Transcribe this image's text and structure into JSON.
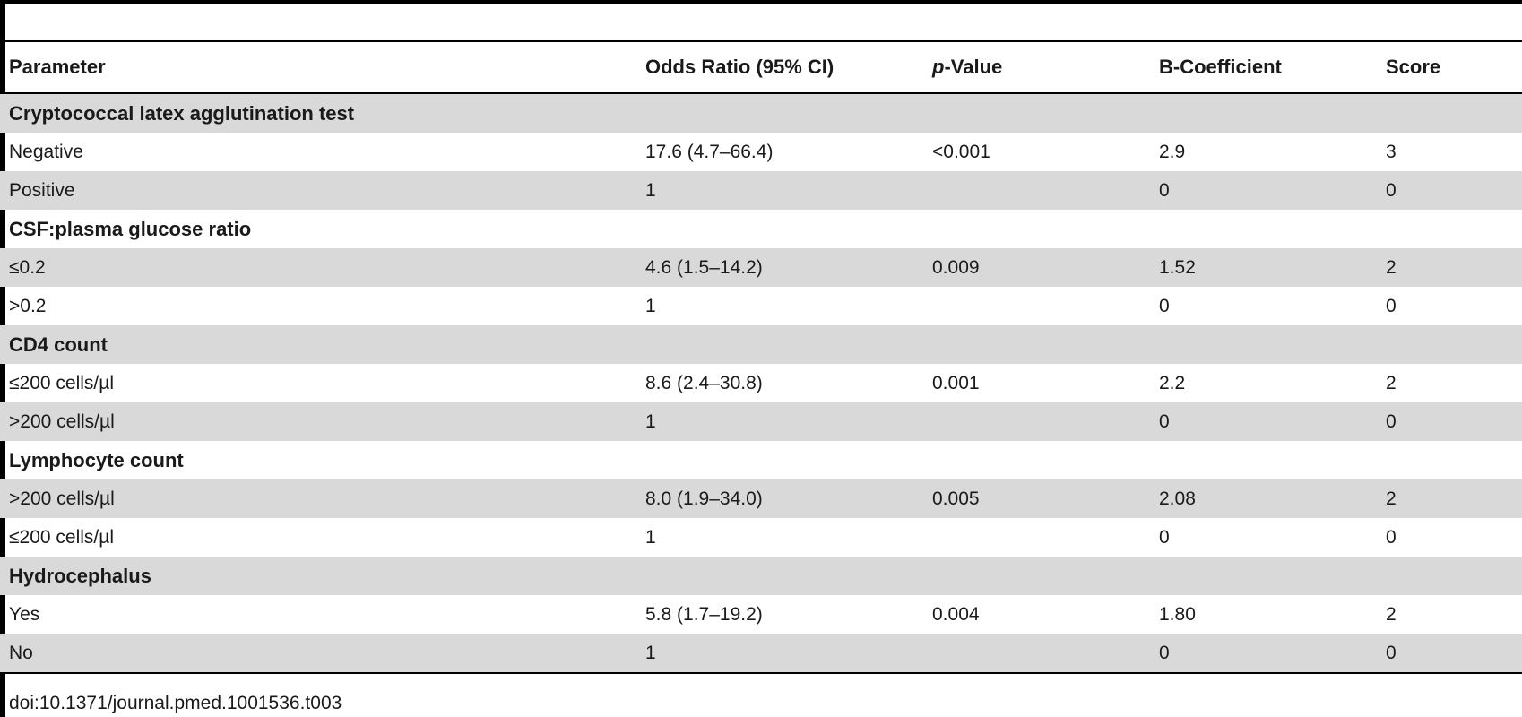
{
  "table": {
    "headers": {
      "parameter": "Parameter",
      "odds_ratio": "Odds Ratio (95% CI)",
      "p_value_prefix": "p",
      "p_value_suffix": "-Value",
      "b_coefficient": "B-Coefficient",
      "score": "Score"
    },
    "rows": [
      {
        "type": "section",
        "shaded": true,
        "parameter": "Cryptococcal latex agglutination test",
        "odds_ratio": "",
        "p_value": "",
        "b_coefficient": "",
        "score": ""
      },
      {
        "type": "data",
        "shaded": false,
        "parameter": "Negative",
        "odds_ratio": "17.6 (4.7–66.4)",
        "p_value": "<0.001",
        "b_coefficient": "2.9",
        "score": "3"
      },
      {
        "type": "data",
        "shaded": true,
        "parameter": "Positive",
        "odds_ratio": "1",
        "p_value": "",
        "b_coefficient": "0",
        "score": "0"
      },
      {
        "type": "section",
        "shaded": false,
        "parameter": "CSF:plasma glucose ratio",
        "odds_ratio": "",
        "p_value": "",
        "b_coefficient": "",
        "score": ""
      },
      {
        "type": "data",
        "shaded": true,
        "parameter": "≤0.2",
        "odds_ratio": "4.6 (1.5–14.2)",
        "p_value": "0.009",
        "b_coefficient": "1.52",
        "score": "2"
      },
      {
        "type": "data",
        "shaded": false,
        "parameter": ">0.2",
        "odds_ratio": "1",
        "p_value": "",
        "b_coefficient": "0",
        "score": "0"
      },
      {
        "type": "section",
        "shaded": true,
        "parameter": "CD4 count",
        "odds_ratio": "",
        "p_value": "",
        "b_coefficient": "",
        "score": ""
      },
      {
        "type": "data",
        "shaded": false,
        "parameter": "≤200 cells/µl",
        "odds_ratio": "8.6 (2.4–30.8)",
        "p_value": "0.001",
        "b_coefficient": "2.2",
        "score": "2"
      },
      {
        "type": "data",
        "shaded": true,
        "parameter": ">200 cells/µl",
        "odds_ratio": "1",
        "p_value": "",
        "b_coefficient": "0",
        "score": "0"
      },
      {
        "type": "section",
        "shaded": false,
        "parameter": "Lymphocyte count",
        "odds_ratio": "",
        "p_value": "",
        "b_coefficient": "",
        "score": ""
      },
      {
        "type": "data",
        "shaded": true,
        "parameter": ">200 cells/µl",
        "odds_ratio": "8.0 (1.9–34.0)",
        "p_value": "0.005",
        "b_coefficient": "2.08",
        "score": "2"
      },
      {
        "type": "data",
        "shaded": false,
        "parameter": "≤200 cells/µl",
        "odds_ratio": "1",
        "p_value": "",
        "b_coefficient": "0",
        "score": "0"
      },
      {
        "type": "section",
        "shaded": true,
        "parameter": "Hydrocephalus",
        "odds_ratio": "",
        "p_value": "",
        "b_coefficient": "",
        "score": ""
      },
      {
        "type": "data",
        "shaded": false,
        "parameter": "Yes",
        "odds_ratio": "5.8 (1.7–19.2)",
        "p_value": "0.004",
        "b_coefficient": "1.80",
        "score": "2"
      },
      {
        "type": "data",
        "shaded": true,
        "parameter": "No",
        "odds_ratio": "1",
        "p_value": "",
        "b_coefficient": "0",
        "score": "0"
      }
    ]
  },
  "footer": {
    "doi": "doi:10.1371/journal.pmed.1001536.t003"
  },
  "colors": {
    "shaded_row": "#d9d9d9",
    "rule": "#000000",
    "text": "#1a1a1a"
  }
}
